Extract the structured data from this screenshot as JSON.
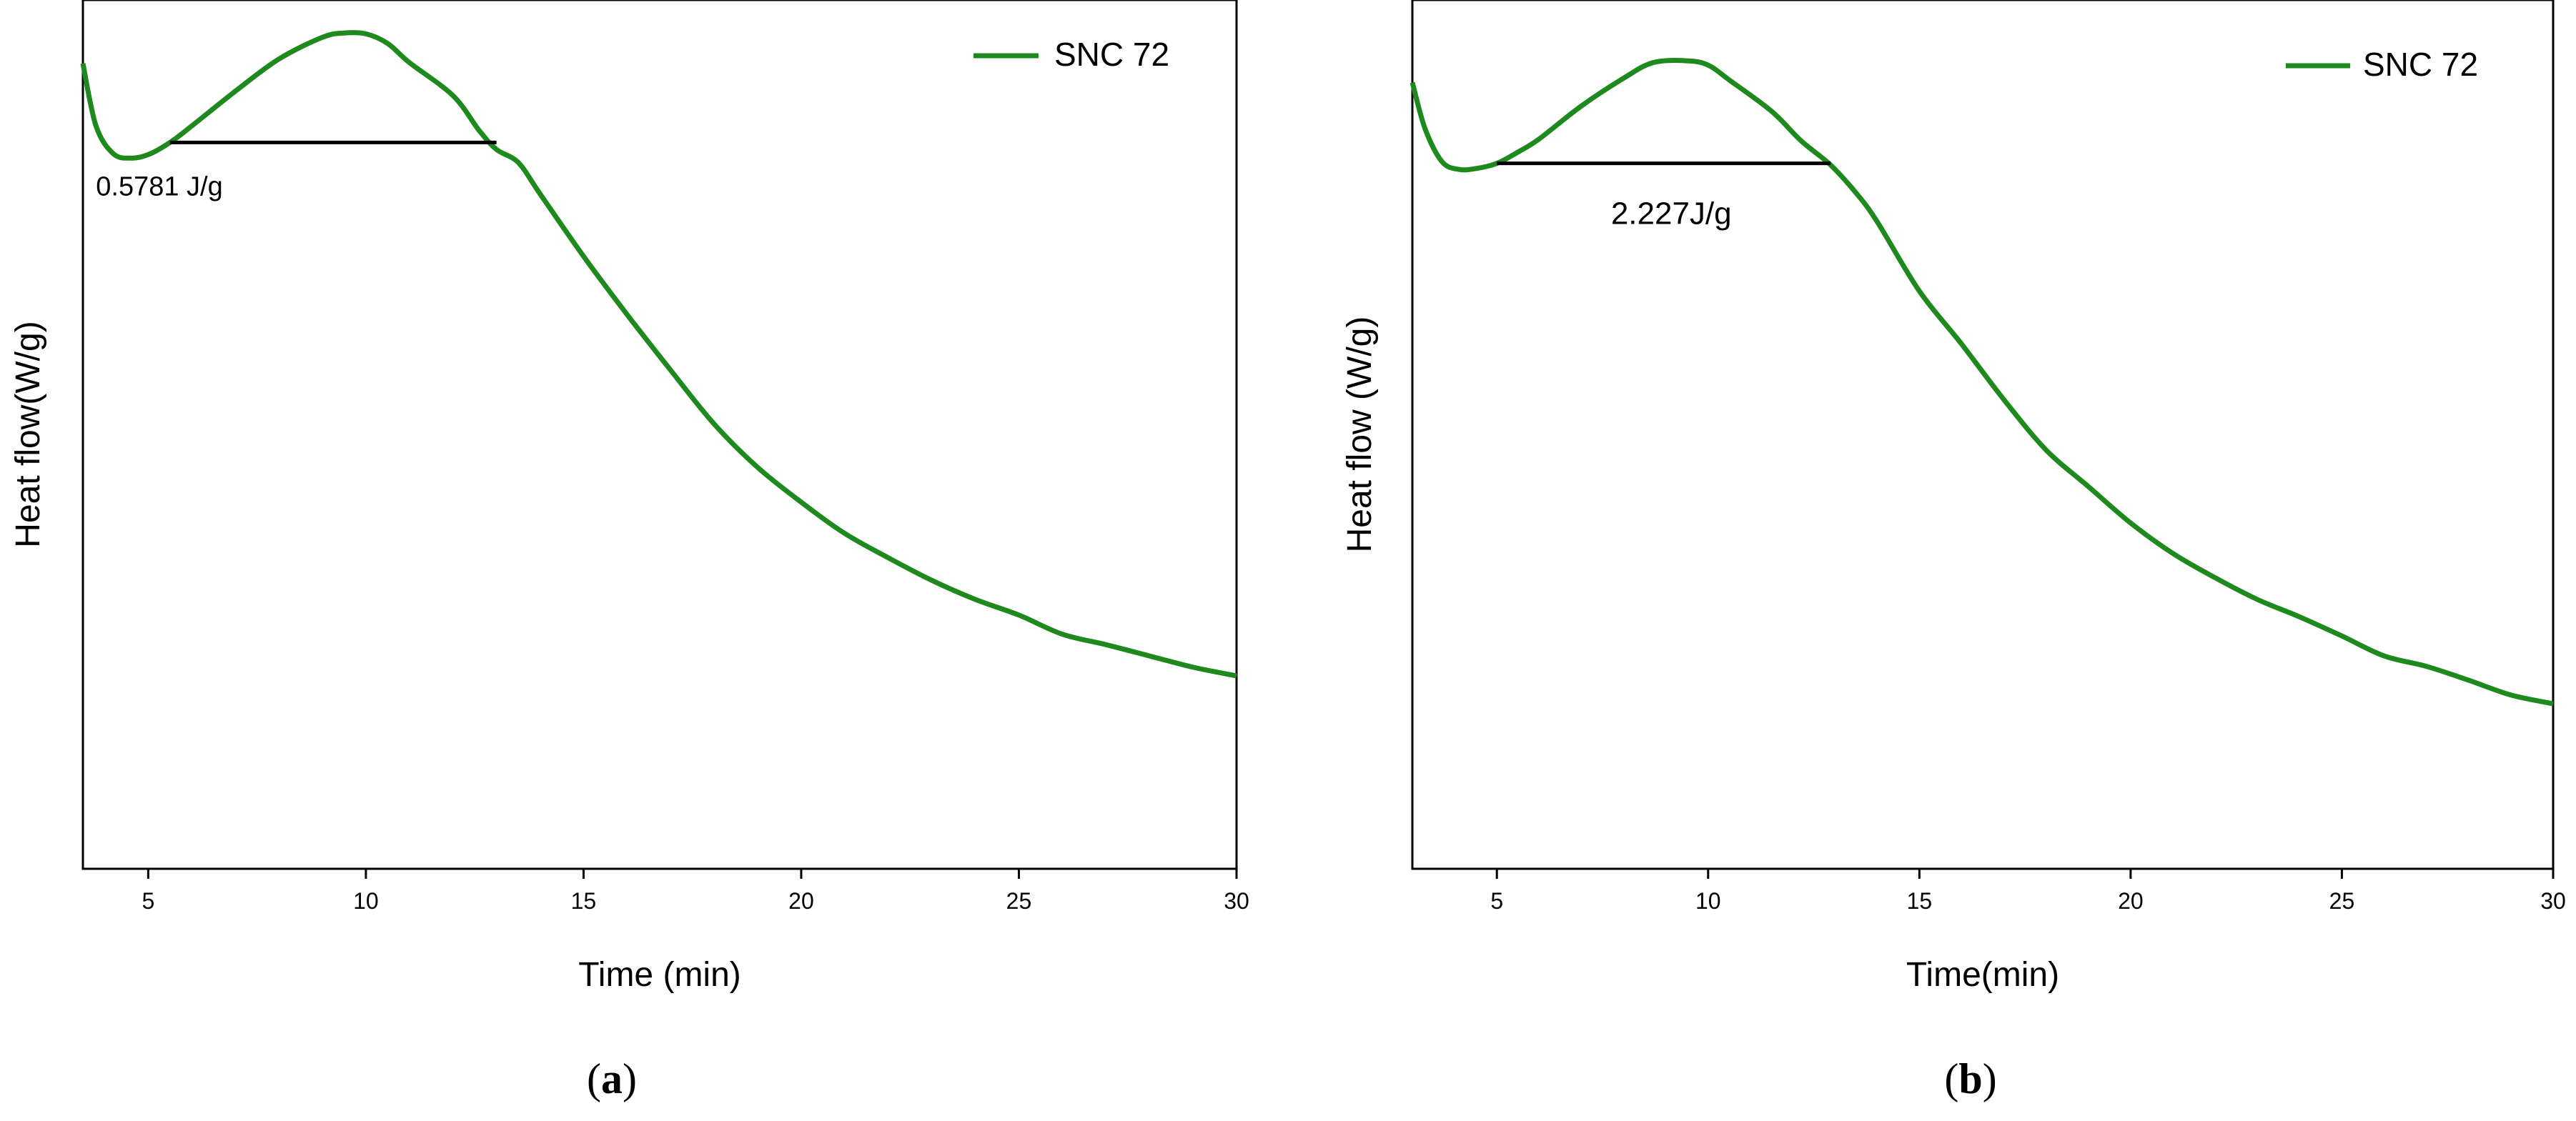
{
  "chart_data": [
    {
      "type": "line",
      "panel_label": "a",
      "xlabel": "Time (min)",
      "ylabel": "Heat flow(W/g)",
      "xlim": [
        3.5,
        30
      ],
      "ylim": [
        0,
        1
      ],
      "xticks": [
        5,
        10,
        15,
        20,
        25,
        30
      ],
      "yticks_labeled": false,
      "grid": false,
      "legend_position": "top-right",
      "series": [
        {
          "name": "SNC 72",
          "color": "#1e8a1e",
          "x": [
            3.5,
            3.8,
            4.2,
            4.6,
            5.0,
            5.5,
            6.0,
            7.0,
            8.0,
            9.0,
            9.5,
            10.0,
            10.5,
            11.0,
            12.0,
            12.6,
            13.0,
            13.5,
            14.0,
            15.0,
            16.0,
            17.0,
            18.0,
            19.0,
            20.0,
            21.0,
            22.0,
            23.0,
            24.0,
            25.0,
            26.0,
            27.0,
            28.0,
            29.0,
            30.0
          ],
          "y": [
            0.927,
            0.855,
            0.823,
            0.818,
            0.822,
            0.836,
            0.855,
            0.895,
            0.932,
            0.957,
            0.962,
            0.961,
            0.95,
            0.928,
            0.89,
            0.85,
            0.828,
            0.813,
            0.777,
            0.705,
            0.638,
            0.574,
            0.512,
            0.462,
            0.422,
            0.386,
            0.358,
            0.332,
            0.31,
            0.292,
            0.27,
            0.258,
            0.245,
            0.232,
            0.222
          ]
        }
      ],
      "baseline": {
        "x": [
          5.5,
          13.0
        ],
        "y": [
          0.836,
          0.836
        ]
      },
      "annotation": {
        "text": "0.5781 J/g",
        "x": 3.8,
        "y": 0.775
      }
    },
    {
      "type": "line",
      "panel_label": "b",
      "xlabel": "Time(min)",
      "ylabel": "Heat flow (W/g)",
      "xlim": [
        3.0,
        30
      ],
      "ylim": [
        0,
        1
      ],
      "xticks": [
        5,
        10,
        15,
        20,
        25,
        30
      ],
      "yticks_labeled": false,
      "grid": false,
      "legend_position": "top-right",
      "series": [
        {
          "name": "SNC 72",
          "color": "#1e8a1e",
          "x": [
            3.0,
            3.3,
            3.7,
            4.1,
            4.5,
            5.0,
            5.5,
            6.0,
            7.0,
            8.0,
            8.7,
            9.5,
            10.0,
            10.5,
            11.5,
            12.2,
            12.9,
            13.5,
            14.0,
            15.0,
            16.0,
            17.0,
            18.0,
            19.0,
            20.0,
            21.0,
            22.0,
            23.0,
            24.0,
            25.0,
            26.0,
            27.0,
            28.0,
            29.0,
            30.0
          ],
          "y": [
            0.905,
            0.852,
            0.814,
            0.805,
            0.806,
            0.812,
            0.825,
            0.84,
            0.878,
            0.91,
            0.928,
            0.93,
            0.925,
            0.908,
            0.872,
            0.838,
            0.81,
            0.778,
            0.745,
            0.665,
            0.604,
            0.54,
            0.482,
            0.44,
            0.398,
            0.363,
            0.335,
            0.31,
            0.29,
            0.268,
            0.245,
            0.233,
            0.217,
            0.2,
            0.19
          ]
        }
      ],
      "baseline": {
        "x": [
          5.0,
          12.9
        ],
        "y": [
          0.812,
          0.812
        ]
      },
      "annotation": {
        "text": "2.227J/g",
        "x": 7.7,
        "y": 0.742
      }
    }
  ]
}
